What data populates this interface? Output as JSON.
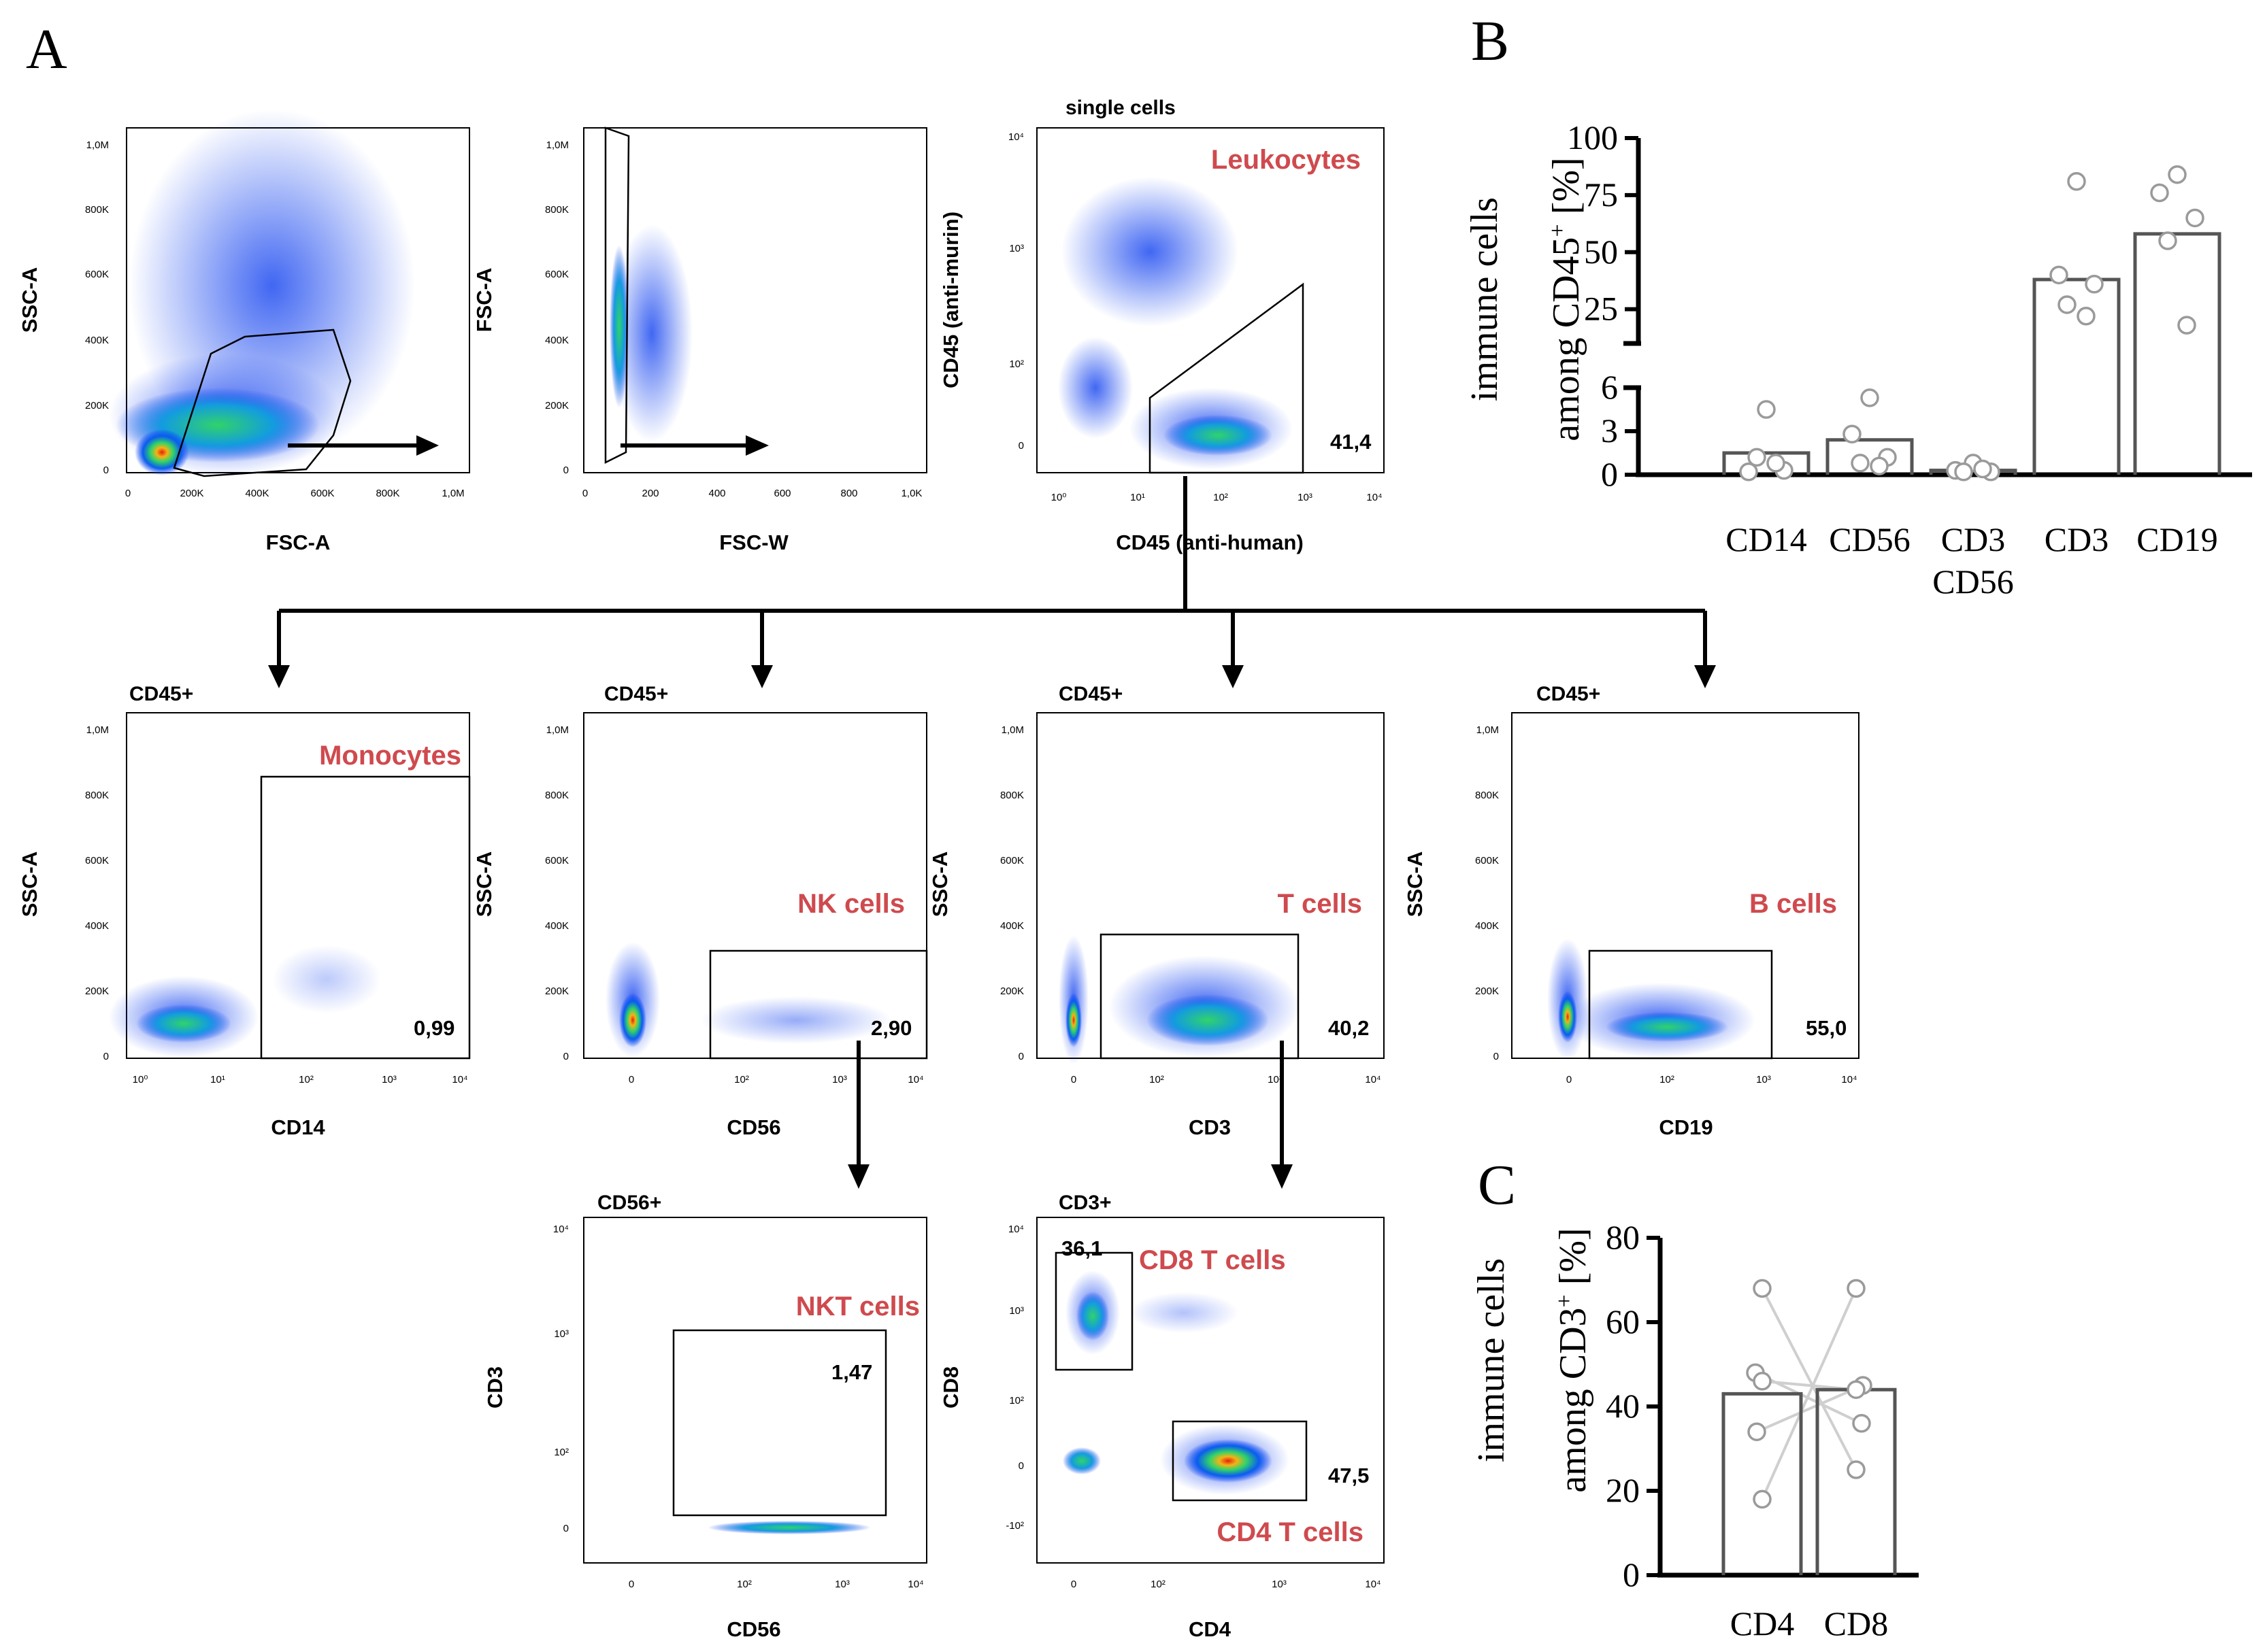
{
  "panels": {
    "a": "A",
    "b": "B",
    "c": "C"
  },
  "colors": {
    "population_label": "#cf4a4e",
    "dot_outline": "#9a9a9a",
    "bar_outline": "#555555"
  },
  "plots": [
    {
      "id": "fsc-ssc",
      "title": "",
      "xlabel": "FSC-A",
      "ylabel": "SSC-A",
      "pop_label": "",
      "gate_value": "",
      "yticks": [
        "1,0M",
        "800K",
        "600K",
        "400K",
        "200K",
        "0"
      ],
      "xticks": [
        "0",
        "200K",
        "400K",
        "600K",
        "800K",
        "1,0M"
      ]
    },
    {
      "id": "fscw-fsc",
      "title": "",
      "xlabel": "FSC-W",
      "ylabel": "FSC-A",
      "pop_label": "",
      "gate_value": "",
      "yticks": [
        "1,0M",
        "800K",
        "600K",
        "400K",
        "200K",
        "0"
      ],
      "xticks": [
        "0",
        "200",
        "400",
        "600",
        "800",
        "1,0K"
      ]
    },
    {
      "id": "cd45",
      "title": "single cells",
      "xlabel": "CD45 (anti-human)",
      "ylabel": "CD45 (anti-murin)",
      "pop_label": "Leukocytes",
      "gate_value": "41,4",
      "yticks": [
        "10⁴",
        "10³",
        "10²",
        "0"
      ],
      "xticks": [
        "10⁰",
        "10¹",
        "10²",
        "10³",
        "10⁴"
      ]
    },
    {
      "id": "cd14",
      "title": "CD45+",
      "xlabel": "CD14",
      "ylabel": "SSC-A",
      "pop_label": "Monocytes",
      "gate_value": "0,99",
      "yticks": [
        "1,0M",
        "800K",
        "600K",
        "400K",
        "200K",
        "0"
      ],
      "xticks": [
        "10⁰",
        "10¹",
        "10²",
        "10³",
        "10⁴"
      ]
    },
    {
      "id": "cd56",
      "title": "CD45+",
      "xlabel": "CD56",
      "ylabel": "SSC-A",
      "pop_label": "NK cells",
      "gate_value": "2,90",
      "yticks": [
        "1,0M",
        "800K",
        "600K",
        "400K",
        "200K",
        "0"
      ],
      "xticks": [
        "0",
        "10²",
        "10³",
        "10⁴"
      ]
    },
    {
      "id": "cd3",
      "title": "CD45+",
      "xlabel": "CD3",
      "ylabel": "SSC-A",
      "pop_label": "T cells",
      "gate_value": "40,2",
      "yticks": [
        "1,0M",
        "800K",
        "600K",
        "400K",
        "200K",
        "0"
      ],
      "xticks": [
        "0",
        "10²",
        "10³",
        "10⁴"
      ]
    },
    {
      "id": "cd19",
      "title": "CD45+",
      "xlabel": "CD19",
      "ylabel": "SSC-A",
      "pop_label": "B cells",
      "gate_value": "55,0",
      "yticks": [
        "1,0M",
        "800K",
        "600K",
        "400K",
        "200K",
        "0"
      ],
      "xticks": [
        "0",
        "10²",
        "10³",
        "10⁴"
      ]
    },
    {
      "id": "nkt",
      "title": "CD56+",
      "xlabel": "CD56",
      "ylabel": "CD3",
      "pop_label": "NKT cells",
      "gate_value": "1,47",
      "yticks": [
        "10⁴",
        "10³",
        "10²",
        "0"
      ],
      "xticks": [
        "0",
        "10²",
        "10³",
        "10⁴"
      ]
    },
    {
      "id": "cd4cd8",
      "title": "CD3+",
      "xlabel": "CD4",
      "ylabel": "CD8",
      "pop_label": "CD8 T cells",
      "pop_label2": "CD4 T cells",
      "gate_value": "36,1",
      "gate_value2": "47,5",
      "yticks": [
        "10⁴",
        "10³",
        "10²",
        "0",
        "-10²"
      ],
      "xticks": [
        "0",
        "10²",
        "10³",
        "10⁴"
      ]
    }
  ],
  "chart_data": [
    {
      "type": "bar",
      "panel": "B",
      "ylabel_main": "immune cells",
      "ylabel_prefix": "among CD45",
      "ylabel_sup": "+",
      "ylabel_suffix": " [%]",
      "categories": [
        "CD14",
        "CD56",
        "CD3 CD56",
        "CD3",
        "CD19"
      ],
      "category_lines": [
        [
          "CD14"
        ],
        [
          "CD56"
        ],
        [
          "CD3",
          "CD56"
        ],
        [
          "CD3"
        ],
        [
          "CD19"
        ]
      ],
      "values": [
        1.5,
        2.4,
        0.3,
        38,
        58
      ],
      "points": [
        [
          4.5,
          0.2,
          0.3,
          1.2,
          0.8
        ],
        [
          5.3,
          2.8,
          1.2,
          0.8,
          0.6
        ],
        [
          0.8,
          0.3,
          0.2,
          0.2,
          0.4
        ],
        [
          81,
          40,
          36,
          27,
          22
        ],
        [
          84,
          76,
          65,
          55,
          18
        ]
      ],
      "broken_axis": {
        "lower": [
          0,
          6
        ],
        "upper": [
          10,
          100
        ]
      },
      "yticks_lower": [
        "0",
        "3",
        "6"
      ],
      "yticks_upper": [
        "25",
        "50",
        "75",
        "100"
      ]
    },
    {
      "type": "bar",
      "panel": "C",
      "ylabel_main": "immune cells",
      "ylabel_prefix": "among CD3",
      "ylabel_sup": "+",
      "ylabel_suffix": " [%]",
      "categories": [
        "CD4",
        "CD8"
      ],
      "values": [
        43,
        44
      ],
      "points": [
        [
          68,
          48,
          46,
          34,
          18
        ],
        [
          68,
          45,
          44,
          36,
          25
        ]
      ],
      "pairs": [
        [
          0,
          4
        ],
        [
          1,
          3
        ],
        [
          2,
          2
        ],
        [
          3,
          1
        ],
        [
          4,
          0
        ]
      ],
      "ylim": [
        0,
        80
      ],
      "yticks": [
        "0",
        "20",
        "40",
        "60",
        "80"
      ]
    }
  ]
}
